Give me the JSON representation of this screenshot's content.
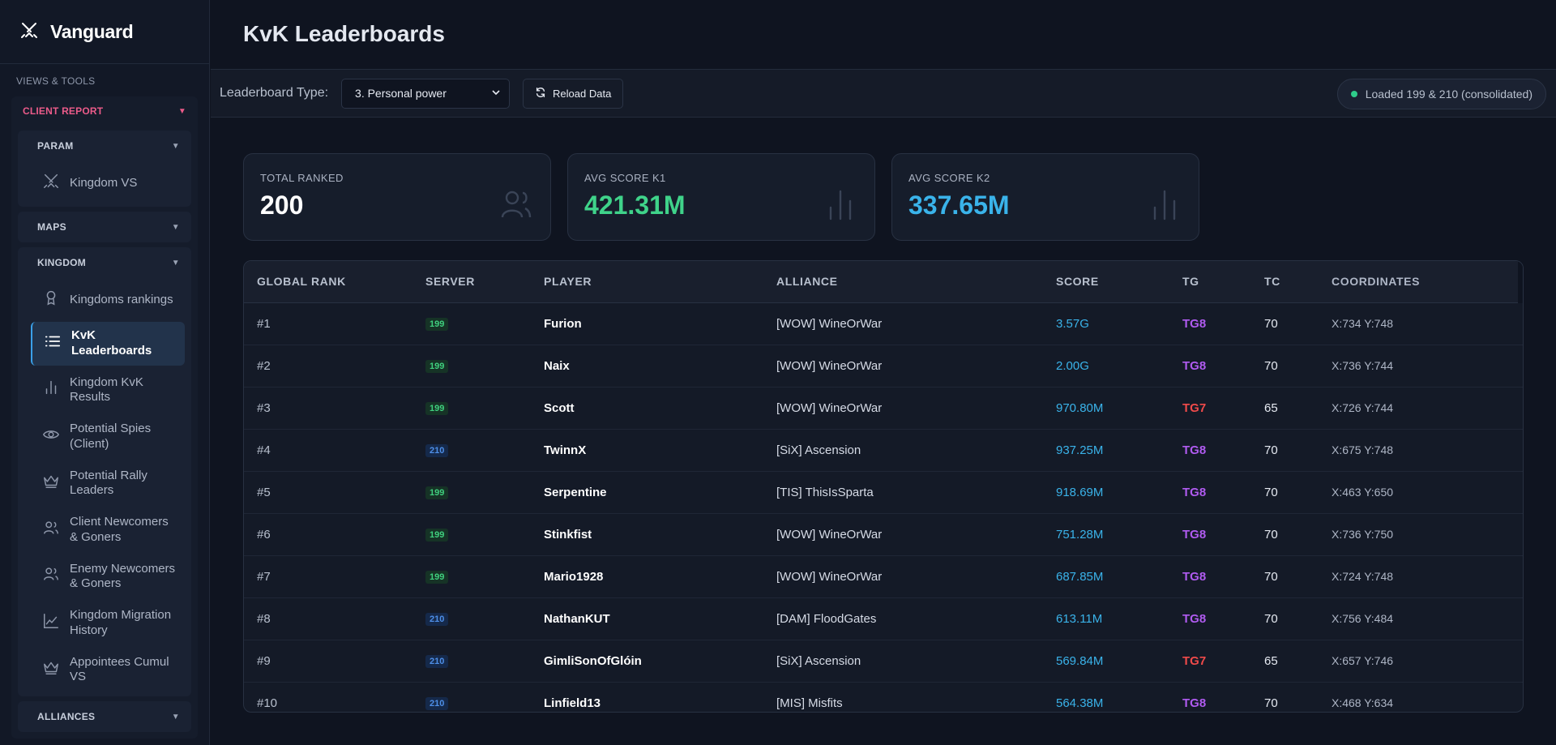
{
  "app": {
    "name": "Vanguard"
  },
  "sidebar": {
    "section_label": "VIEWS & TOOLS",
    "client_report": "CLIENT REPORT",
    "groups": [
      {
        "title": "PARAM",
        "items": [
          {
            "label": "Kingdom VS",
            "icon": "swords-icon"
          }
        ]
      },
      {
        "title": "MAPS",
        "items": []
      },
      {
        "title": "KINGDOM",
        "items": [
          {
            "label": "Kingdoms rankings",
            "icon": "award-icon"
          },
          {
            "label": "KvK Leaderboards",
            "icon": "list-icon",
            "active": true
          },
          {
            "label": "Kingdom KvK Results",
            "icon": "bar-chart-icon"
          },
          {
            "label": "Potential Spies (Client)",
            "icon": "eye-icon"
          },
          {
            "label": "Potential Rally Leaders",
            "icon": "crown-icon"
          },
          {
            "label": "Client Newcomers & Goners",
            "icon": "users-icon"
          },
          {
            "label": "Enemy Newcomers & Goners",
            "icon": "users-icon"
          },
          {
            "label": "Kingdom Migration History",
            "icon": "line-chart-icon"
          },
          {
            "label": "Appointees Cumul VS",
            "icon": "crown-icon"
          }
        ]
      },
      {
        "title": "ALLIANCES",
        "items": []
      }
    ]
  },
  "page": {
    "title": "KvK Leaderboards"
  },
  "toolbar": {
    "type_label": "Leaderboard Type:",
    "type_value": "3. Personal power",
    "reload_label": "Reload Data",
    "status": "Loaded 199 & 210 (consolidated)"
  },
  "stats": [
    {
      "label": "TOTAL RANKED",
      "value": "200",
      "color": "#ffffff",
      "icon": "users-icon"
    },
    {
      "label": "AVG SCORE K1",
      "value": "421.31M",
      "color": "#3fd38a",
      "icon": "bar-chart-icon"
    },
    {
      "label": "AVG SCORE K2",
      "value": "337.65M",
      "color": "#3ab3ea",
      "icon": "bar-chart-icon"
    }
  ],
  "table": {
    "columns": [
      "GLOBAL RANK",
      "SERVER",
      "PLAYER",
      "ALLIANCE",
      "SCORE",
      "TG",
      "TC",
      "COORDINATES"
    ],
    "rows": [
      {
        "rank": "#1",
        "server": "199",
        "player": "Furion",
        "alliance": "[WOW] WineOrWar",
        "score": "3.57G",
        "tg": "TG8",
        "tc": "70",
        "coords": "X:734 Y:748"
      },
      {
        "rank": "#2",
        "server": "199",
        "player": "Naix",
        "alliance": "[WOW] WineOrWar",
        "score": "2.00G",
        "tg": "TG8",
        "tc": "70",
        "coords": "X:736 Y:744"
      },
      {
        "rank": "#3",
        "server": "199",
        "player": "Scott",
        "alliance": "[WOW] WineOrWar",
        "score": "970.80M",
        "tg": "TG7",
        "tc": "65",
        "coords": "X:726 Y:744"
      },
      {
        "rank": "#4",
        "server": "210",
        "player": "TwinnX",
        "alliance": "[SiX] Ascension",
        "score": "937.25M",
        "tg": "TG8",
        "tc": "70",
        "coords": "X:675 Y:748"
      },
      {
        "rank": "#5",
        "server": "199",
        "player": "Serpentine",
        "alliance": "[TIS] ThisIsSparta",
        "score": "918.69M",
        "tg": "TG8",
        "tc": "70",
        "coords": "X:463 Y:650"
      },
      {
        "rank": "#6",
        "server": "199",
        "player": "Stinkfist",
        "alliance": "[WOW] WineOrWar",
        "score": "751.28M",
        "tg": "TG8",
        "tc": "70",
        "coords": "X:736 Y:750"
      },
      {
        "rank": "#7",
        "server": "199",
        "player": "Mario1928",
        "alliance": "[WOW] WineOrWar",
        "score": "687.85M",
        "tg": "TG8",
        "tc": "70",
        "coords": "X:724 Y:748"
      },
      {
        "rank": "#8",
        "server": "210",
        "player": "NathanKUT",
        "alliance": "[DAM] FloodGates",
        "score": "613.11M",
        "tg": "TG8",
        "tc": "70",
        "coords": "X:756 Y:484"
      },
      {
        "rank": "#9",
        "server": "210",
        "player": "GimliSonOfGlóin",
        "alliance": "[SiX] Ascension",
        "score": "569.84M",
        "tg": "TG7",
        "tc": "65",
        "coords": "X:657 Y:746"
      },
      {
        "rank": "#10",
        "server": "210",
        "player": "Linfield13",
        "alliance": "[MIS] Misfits",
        "score": "564.38M",
        "tg": "TG8",
        "tc": "70",
        "coords": "X:468 Y:634"
      }
    ]
  }
}
